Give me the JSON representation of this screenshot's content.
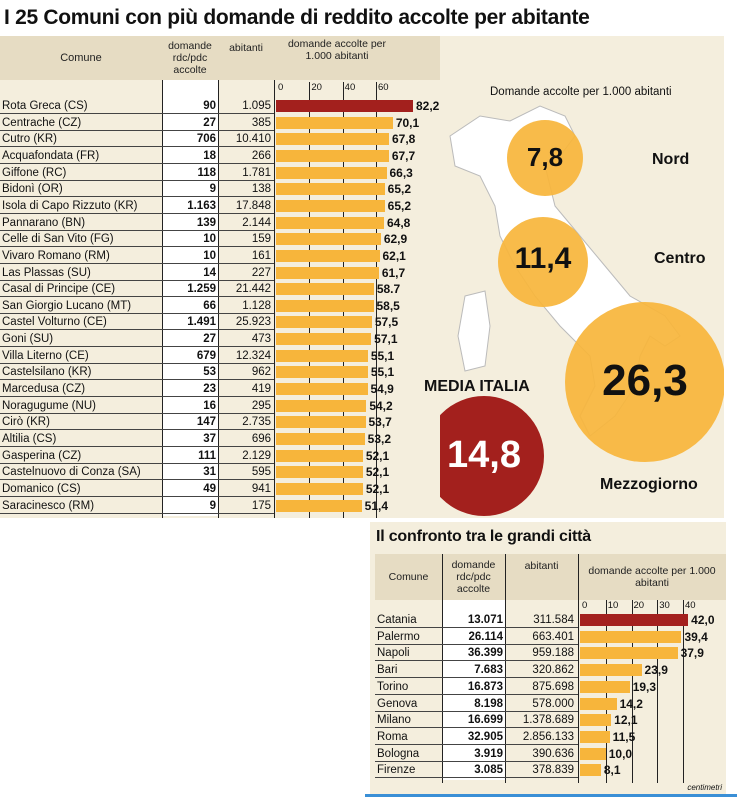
{
  "title": "I 25 Comuni con più domande di reddito accolte per abitante",
  "table1": {
    "headers": {
      "comune": "Comune",
      "domande": "domande rdc/pdc accolte",
      "abitanti": "abitanti",
      "rate": "domande accolte per 1.000 abitanti"
    },
    "ticks": [
      "0",
      "20",
      "40",
      "60"
    ],
    "rows": [
      [
        "Rota Greca (CS)",
        "90",
        "1.095",
        "82,2"
      ],
      [
        "Centrache (CZ)",
        "27",
        "385",
        "70,1"
      ],
      [
        "Cutro (KR)",
        "706",
        "10.410",
        "67,8"
      ],
      [
        "Acquafondata (FR)",
        "18",
        "266",
        "67,7"
      ],
      [
        "Giffone (RC)",
        "118",
        "1.781",
        "66,3"
      ],
      [
        "Bidonì (OR)",
        "9",
        "138",
        "65,2"
      ],
      [
        "Isola di Capo Rizzuto (KR)",
        "1.163",
        "17.848",
        "65,2"
      ],
      [
        "Pannarano (BN)",
        "139",
        "2.144",
        "64,8"
      ],
      [
        "Celle di San Vito (FG)",
        "10",
        "159",
        "62,9"
      ],
      [
        "Vivaro Romano (RM)",
        "10",
        "161",
        "62,1"
      ],
      [
        "Las Plassas (SU)",
        "14",
        "227",
        "61,7"
      ],
      [
        "Casal di Principe (CE)",
        "1.259",
        "21.442",
        "58.7"
      ],
      [
        "San Giorgio Lucano (MT)",
        "66",
        "1.128",
        "58,5"
      ],
      [
        "Castel Volturno (CE)",
        "1.491",
        "25.923",
        "57,5"
      ],
      [
        "Goni (SU)",
        "27",
        "473",
        "57,1"
      ],
      [
        "Villa Literno (CE)",
        "679",
        "12.324",
        "55,1"
      ],
      [
        "Castelsilano (KR)",
        "53",
        "962",
        "55,1"
      ],
      [
        "Marcedusa (CZ)",
        "23",
        "419",
        "54,9"
      ],
      [
        "Noragugume (NU)",
        "16",
        "295",
        "54,2"
      ],
      [
        "Cirò (KR)",
        "147",
        "2.735",
        "53,7"
      ],
      [
        "Altilia (CS)",
        "37",
        "696",
        "53,2"
      ],
      [
        "Gasperina (CZ)",
        "111",
        "2.129",
        "52,1"
      ],
      [
        "Castelnuovo di Conza (SA)",
        "31",
        "595",
        "52,1"
      ],
      [
        "Domanico (CS)",
        "49",
        "941",
        "52,1"
      ],
      [
        "Saracinesco (RM)",
        "9",
        "175",
        "51,4"
      ]
    ]
  },
  "map": {
    "subtitle": "Domande accolte per 1.000 abitanti",
    "regions": [
      {
        "name": "Nord",
        "value": "7,8"
      },
      {
        "name": "Centro",
        "value": "11,4"
      },
      {
        "name": "Mezzogiorno",
        "value": "26,3"
      }
    ],
    "media_label": "MEDIA ITALIA",
    "media_value": "14,8"
  },
  "table2": {
    "title": "Il confronto tra le grandi città",
    "headers": {
      "comune": "Comune",
      "domande": "domande rdc/pdc accolte",
      "abitanti": "abitanti",
      "rate": "domande accolte per 1.000 abitanti"
    },
    "ticks": [
      "0",
      "10",
      "20",
      "30",
      "40"
    ],
    "rows": [
      [
        "Catania",
        "13.071",
        "311.584",
        "42,0"
      ],
      [
        "Palermo",
        "26.114",
        "663.401",
        "39,4"
      ],
      [
        "Napoli",
        "36.399",
        "959.188",
        "37,9"
      ],
      [
        "Bari",
        "7.683",
        "320.862",
        "23,9"
      ],
      [
        "Torino",
        "16.873",
        "875.698",
        "19,3"
      ],
      [
        "Genova",
        "8.198",
        "578.000",
        "14,2"
      ],
      [
        "Milano",
        "16.699",
        "1.378.689",
        "12,1"
      ],
      [
        "Roma",
        "32.905",
        "2.856.133",
        "11,5"
      ],
      [
        "Bologna",
        "3.919",
        "390.636",
        "10,0"
      ],
      [
        "Firenze",
        "3.085",
        "378.839",
        "8,1"
      ]
    ]
  },
  "credit": "centimetri",
  "colors": {
    "highlight": "#a3201d",
    "bar": "#f7b53b",
    "panel": "#f4eedd",
    "header": "#e6dcc3"
  },
  "chart_data": [
    {
      "type": "bar",
      "title": "I 25 Comuni con più domande di reddito accolte per abitante",
      "ylabel": "domande accolte per 1.000 abitanti",
      "xlim": [
        0,
        82.2
      ],
      "ticks": [
        0,
        20,
        40,
        60
      ],
      "categories": [
        "Rota Greca (CS)",
        "Centrache (CZ)",
        "Cutro (KR)",
        "Acquafondata (FR)",
        "Giffone (RC)",
        "Bidonì (OR)",
        "Isola di Capo Rizzuto (KR)",
        "Pannarano (BN)",
        "Celle di San Vito (FG)",
        "Vivaro Romano (RM)",
        "Las Plassas (SU)",
        "Casal di Principe (CE)",
        "San Giorgio Lucano (MT)",
        "Castel Volturno (CE)",
        "Goni (SU)",
        "Villa Literno (CE)",
        "Castelsilano (KR)",
        "Marcedusa (CZ)",
        "Noragugume (NU)",
        "Cirò (KR)",
        "Altilia (CS)",
        "Gasperina (CZ)",
        "Castelnuovo di Conza (SA)",
        "Domanico (CS)",
        "Saracinesco (RM)"
      ],
      "values": [
        82.2,
        70.1,
        67.8,
        67.7,
        66.3,
        65.2,
        65.2,
        64.8,
        62.9,
        62.1,
        61.7,
        58.7,
        58.5,
        57.5,
        57.1,
        55.1,
        55.1,
        54.9,
        54.2,
        53.7,
        53.2,
        52.1,
        52.1,
        52.1,
        51.4
      ]
    },
    {
      "type": "bar",
      "title": "Il confronto tra le grandi città",
      "ylabel": "domande accolte per 1.000 abitanti",
      "xlim": [
        0,
        42
      ],
      "ticks": [
        0,
        10,
        20,
        30,
        40
      ],
      "categories": [
        "Catania",
        "Palermo",
        "Napoli",
        "Bari",
        "Torino",
        "Genova",
        "Milano",
        "Roma",
        "Bologna",
        "Firenze"
      ],
      "values": [
        42.0,
        39.4,
        37.9,
        23.9,
        19.3,
        14.2,
        12.1,
        11.5,
        10.0,
        8.1
      ]
    }
  ]
}
